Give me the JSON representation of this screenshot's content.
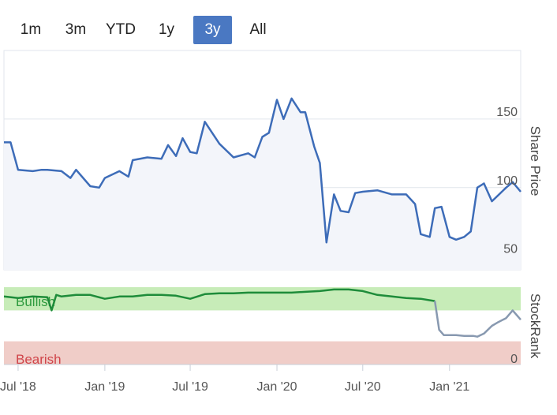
{
  "range_buttons": [
    {
      "label": "1m",
      "active": false
    },
    {
      "label": "3m",
      "active": false
    },
    {
      "label": "YTD",
      "active": false
    },
    {
      "label": "1y",
      "active": false
    },
    {
      "label": "3y",
      "active": true
    },
    {
      "label": "All",
      "active": false
    }
  ],
  "colors": {
    "price_line": "#3d6cb8",
    "price_fill": "#f3f5fa",
    "rank_bullish_line": "#1e8c3a",
    "rank_neutral_line": "#8899b0",
    "bullish_zone": "#c7ecb8",
    "bearish_zone": "#f0cdc8",
    "bullish_text": "#2e9a3e",
    "bearish_text": "#d0454a",
    "accent": "#4a78c2"
  },
  "chart_data": [
    {
      "type": "line",
      "ylabel": "Share Price",
      "ylim": [
        40,
        200
      ],
      "yticks": [
        50,
        100,
        150
      ],
      "x_range": [
        "2018-06",
        "2021-06"
      ],
      "xticks": [
        {
          "value": "2018-07",
          "label": "Jul '18"
        },
        {
          "value": "2019-01",
          "label": "Jan '19"
        },
        {
          "value": "2019-07",
          "label": "Jul '19"
        },
        {
          "value": "2020-01",
          "label": "Jan '20"
        },
        {
          "value": "2020-07",
          "label": "Jul '20"
        },
        {
          "value": "2021-01",
          "label": "Jan '21"
        }
      ],
      "grid": true,
      "series": [
        {
          "x": [
            "2018-06",
            "2018-06-15",
            "2018-07",
            "2018-08",
            "2018-08-20",
            "2018-09",
            "2018-10",
            "2018-10-20",
            "2018-11",
            "2018-12",
            "2018-12-20",
            "2019-01",
            "2019-02",
            "2019-02-20",
            "2019-03",
            "2019-04",
            "2019-05",
            "2019-05-15",
            "2019-06",
            "2019-06-15",
            "2019-07",
            "2019-07-15",
            "2019-08",
            "2019-09",
            "2019-10",
            "2019-11",
            "2019-11-15",
            "2019-12",
            "2019-12-15",
            "2020-01",
            "2020-01-15",
            "2020-02",
            "2020-02-20",
            "2020-03",
            "2020-03-10",
            "2020-03-20",
            "2020-04",
            "2020-04-15",
            "2020-05",
            "2020-05-15",
            "2020-06",
            "2020-06-15",
            "2020-07",
            "2020-08",
            "2020-09",
            "2020-10",
            "2020-10-20",
            "2020-11",
            "2020-11-20",
            "2020-12",
            "2020-12-15",
            "2021-01",
            "2021-01-15",
            "2021-02",
            "2021-02-15",
            "2021-03",
            "2021-03-15",
            "2021-04",
            "2021-05",
            "2021-05-15",
            "2021-06"
          ],
          "y": [
            133,
            133,
            113,
            112,
            113,
            113,
            112,
            107,
            113,
            101,
            100,
            107,
            112,
            108,
            120,
            122,
            121,
            131,
            123,
            136,
            126,
            125,
            148,
            132,
            122,
            125,
            122,
            137,
            140,
            164,
            150,
            165,
            155,
            155,
            143,
            130,
            118,
            60,
            95,
            83,
            82,
            96,
            97,
            98,
            95,
            95,
            88,
            66,
            64,
            85,
            86,
            64,
            62,
            64,
            68,
            100,
            103,
            90,
            100,
            104,
            97
          ]
        }
      ]
    },
    {
      "type": "line",
      "ylabel": "StockRank",
      "ylim": [
        0,
        100
      ],
      "ytick_label": "0",
      "zones": [
        {
          "label": "Bullish",
          "from": 70,
          "to": 100
        },
        {
          "label": "Bearish",
          "from": 0,
          "to": 30
        }
      ],
      "series": [
        {
          "x": [
            "2018-06",
            "2018-07",
            "2018-08",
            "2018-09",
            "2018-09-10",
            "2018-09-20",
            "2018-10",
            "2018-11",
            "2018-12",
            "2019-01",
            "2019-02",
            "2019-03",
            "2019-04",
            "2019-05",
            "2019-06",
            "2019-07",
            "2019-08",
            "2019-09",
            "2019-10",
            "2019-11",
            "2019-12",
            "2020-01",
            "2020-02",
            "2020-03",
            "2020-04",
            "2020-05",
            "2020-06",
            "2020-07",
            "2020-08",
            "2020-09",
            "2020-10",
            "2020-11",
            "2020-12"
          ],
          "y": [
            88,
            86,
            88,
            87,
            70,
            90,
            88,
            90,
            90,
            85,
            88,
            88,
            90,
            90,
            89,
            85,
            91,
            92,
            92,
            93,
            93,
            93,
            93,
            94,
            95,
            97,
            97,
            95,
            90,
            88,
            86,
            85,
            82
          ]
        },
        {
          "x": [
            "2020-12",
            "2020-12-10",
            "2020-12-20",
            "2021-01",
            "2021-01-15",
            "2021-02",
            "2021-02-20",
            "2021-03",
            "2021-03-15",
            "2021-04",
            "2021-04-15",
            "2021-05",
            "2021-05-15",
            "2021-06"
          ],
          "y": [
            82,
            45,
            38,
            38,
            38,
            37,
            37,
            36,
            40,
            50,
            55,
            60,
            70,
            58
          ]
        }
      ]
    }
  ]
}
